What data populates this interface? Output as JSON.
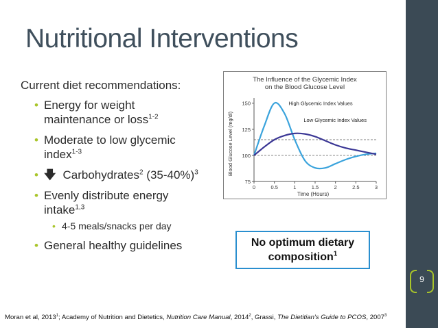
{
  "slide": {
    "title": "Nutritional Interventions",
    "page_number": "9",
    "colors": {
      "sidebar": "#3b4a55",
      "accent": "#a9c52a",
      "title": "#3f4f5c",
      "callout_border": "#2a8fcf"
    }
  },
  "content": {
    "intro": "Current diet recommendations:",
    "bullets": [
      {
        "text": "Energy for weight maintenance or loss",
        "sup": "1-2"
      },
      {
        "text": "Moderate to low glycemic index",
        "sup": "1-3"
      },
      {
        "arrow_icon": "arrow-down-icon",
        "text": "Carbohydrates",
        "sup": "2",
        "text2": " (35-40%)",
        "sup2": "3"
      },
      {
        "text": "Evenly distribute energy intake",
        "sup": "1,3",
        "sub": [
          "4-5 meals/snacks per day"
        ]
      },
      {
        "text": "General healthy guidelines"
      }
    ]
  },
  "callout": {
    "line1": "No optimum dietary",
    "line2": "composition",
    "sup": "1"
  },
  "citation": {
    "part1": "Moran et al, 2013",
    "sup1": "1",
    "part2": "; Academy of Nutrition and Dietetics, ",
    "italic2": "Nutrition Care Manual",
    "part3": ", 2014",
    "sup2": "2",
    "part4": ", Grassi, ",
    "italic4": "The Dietitian's Guide to PCOS",
    "part5": ", 2007",
    "sup3": "3"
  },
  "chart_data": {
    "type": "line",
    "title": "The Influence of the Glycemic Index on the Blood Glucose Level",
    "xlabel": "Time (Hours)",
    "ylabel": "Blood Glucose Level (mg/dl)",
    "x_ticks": [
      "0",
      "0.5",
      "1",
      "1.5",
      "2",
      "2.5",
      "3"
    ],
    "y_ticks": [
      "75",
      "100",
      "125",
      "150"
    ],
    "xlim": [
      0,
      3
    ],
    "ylim": [
      75,
      155
    ],
    "grid": false,
    "reference_lines_dashed": [
      100,
      115
    ],
    "series": [
      {
        "name": "High Glycemic Index Values",
        "color": "#3aa3dc",
        "x": [
          0,
          0.25,
          0.5,
          0.75,
          1,
          1.25,
          1.5,
          1.75,
          2,
          2.25,
          2.5,
          2.75,
          3
        ],
        "y": [
          100,
          128,
          150,
          140,
          115,
          95,
          88,
          88,
          92,
          96,
          99,
          101,
          102
        ]
      },
      {
        "name": "Low Glycemic Index Values",
        "color": "#3b3795",
        "x": [
          0,
          0.25,
          0.5,
          0.75,
          1,
          1.25,
          1.5,
          1.75,
          2,
          2.25,
          2.5,
          2.75,
          3
        ],
        "y": [
          100,
          108,
          115,
          119,
          121,
          120.5,
          118,
          114,
          110,
          107,
          105,
          103,
          101
        ]
      }
    ]
  }
}
